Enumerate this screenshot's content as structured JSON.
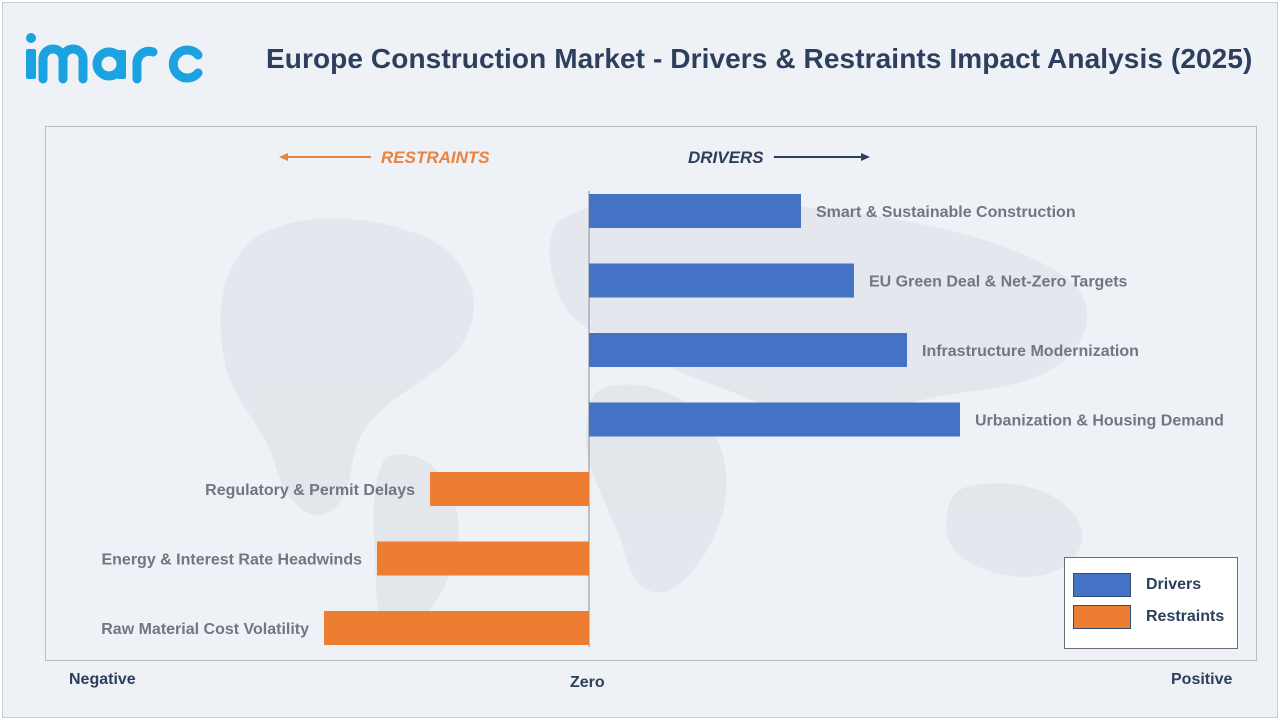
{
  "brand": {
    "logo_text": "imarc"
  },
  "title": "Europe Construction Market - Drivers & Restraints Impact Analysis (2025)",
  "colors": {
    "drivers": "#4472c4",
    "restraints": "#ed7d31",
    "restraints_text": "#e8843f",
    "drivers_text": "#2d3f5c",
    "logo": "#1aa3e0"
  },
  "chart_data": {
    "type": "bar",
    "orientation": "horizontal",
    "direction_labels": {
      "restraints": "RESTRAINTS",
      "drivers": "DRIVERS"
    },
    "axis_labels": {
      "negative": "Negative",
      "zero": "Zero",
      "positive": "Positive"
    },
    "xlim": [
      -5,
      7
    ],
    "categories": [
      "Smart & Sustainable Construction",
      "EU Green Deal & Net-Zero Targets",
      "Infrastructure Modernization",
      "Urbanization & Housing Demand",
      "Regulatory & Permit Delays",
      "Energy & Interest Rate Headwinds",
      "Raw Material Cost Volatility"
    ],
    "series": [
      {
        "name": "Drivers",
        "values": [
          2.0,
          2.5,
          3.0,
          3.5,
          null,
          null,
          null
        ]
      },
      {
        "name": "Restraints",
        "values": [
          null,
          null,
          null,
          null,
          -1.5,
          -2.0,
          -2.5
        ]
      }
    ],
    "legend_position": "bottom-right",
    "grid": false
  }
}
